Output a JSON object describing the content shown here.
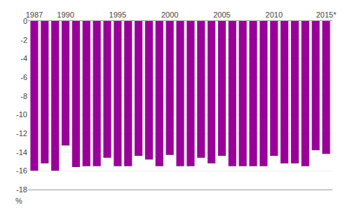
{
  "chart_data": {
    "type": "bar",
    "ylabel": "%",
    "x": [
      1987,
      1988,
      1989,
      1990,
      1991,
      1992,
      1993,
      1994,
      1995,
      1996,
      1997,
      1998,
      1999,
      2000,
      2001,
      2002,
      2003,
      2004,
      2005,
      2006,
      2007,
      2008,
      2009,
      2010,
      2011,
      2012,
      2013,
      2014,
      2015
    ],
    "values": [
      -16.0,
      -15.2,
      -16.0,
      -13.3,
      -15.6,
      -15.5,
      -15.5,
      -14.6,
      -15.5,
      -15.5,
      -14.4,
      -14.8,
      -15.5,
      -14.3,
      -15.5,
      -15.5,
      -14.6,
      -15.2,
      -14.4,
      -15.5,
      -15.5,
      -15.5,
      -15.5,
      -14.4,
      -15.2,
      -15.2,
      -15.5,
      -13.8,
      -14.2
    ],
    "color": "#990099",
    "xlim": [
      1986.4,
      2015.6
    ],
    "xticks": [
      1987,
      1990,
      1995,
      2000,
      2005,
      2010,
      {
        "value": 2015,
        "label": "2015*"
      }
    ],
    "ylim": [
      -18,
      0
    ],
    "yticks": [
      0,
      -2,
      -4,
      -6,
      -8,
      -10,
      -12,
      -14,
      -16,
      -18
    ],
    "grid": true
  }
}
